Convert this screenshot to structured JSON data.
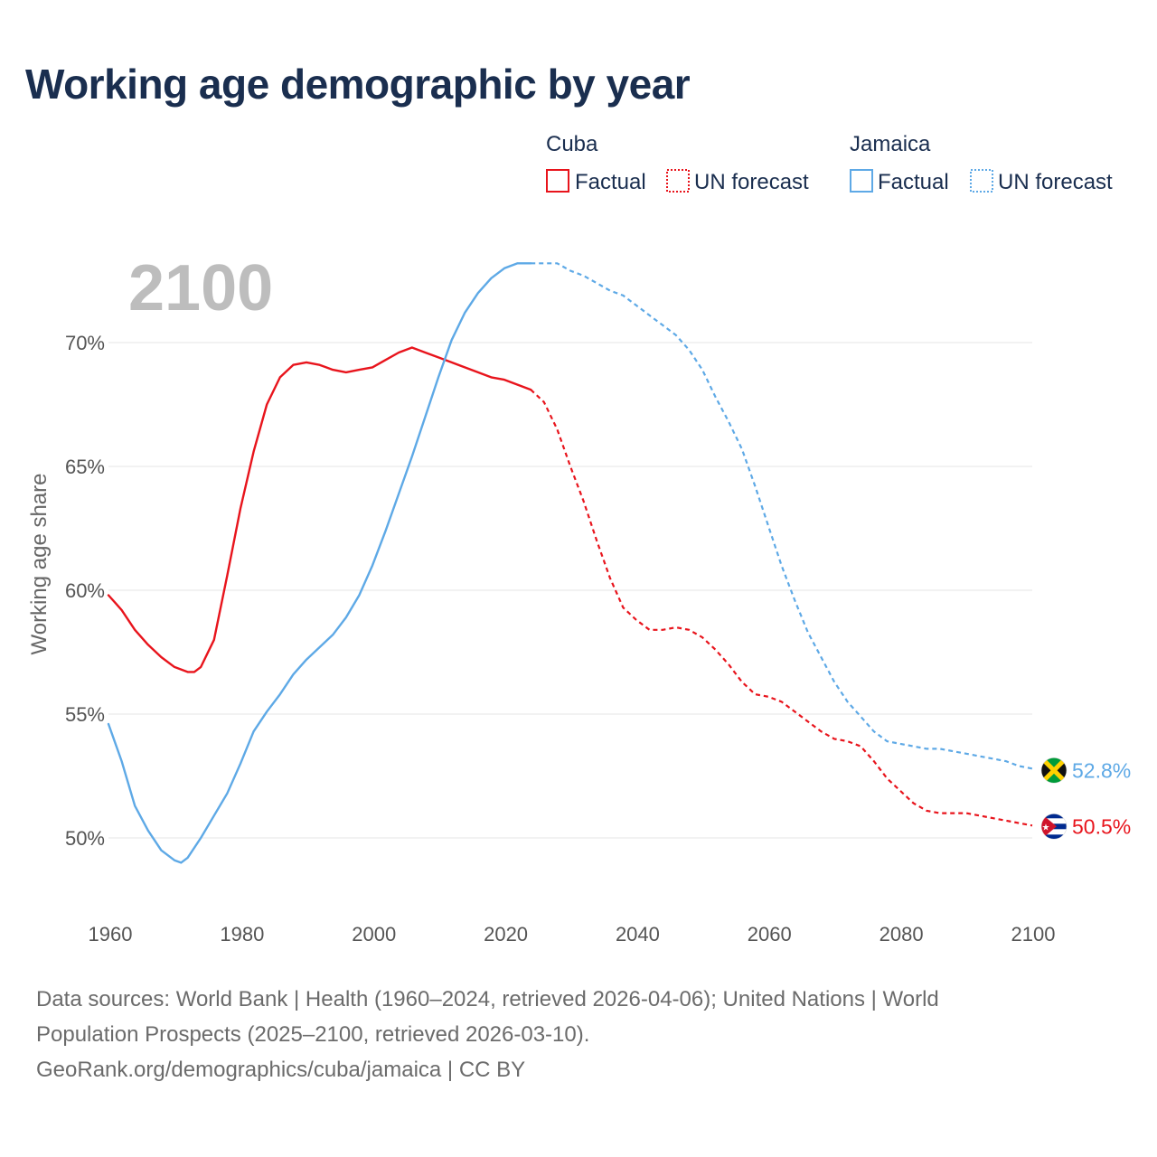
{
  "title": "Working age demographic by year",
  "year_display": "2100",
  "legend": {
    "groups": [
      {
        "name": "Cuba",
        "color": "#e8141c",
        "factual_label": "Factual",
        "forecast_label": "UN forecast"
      },
      {
        "name": "Jamaica",
        "color": "#5ea9e6",
        "factual_label": "Factual",
        "forecast_label": "UN forecast"
      }
    ]
  },
  "footer": {
    "line1": "Data sources: World Bank | Health (1960–2024, retrieved 2026-04-06); United Nations | World",
    "line2": "Population Prospects (2025–2100, retrieved 2026-03-10).",
    "line3": "GeoRank.org/demographics/cuba/jamaica | CC BY"
  },
  "icons": {
    "jamaica_flag": "jamaica-flag-icon",
    "cuba_flag": "cuba-flag-icon"
  },
  "chart_data": {
    "type": "line",
    "title": "Working age demographic by year",
    "xlabel": "",
    "ylabel": "Working age share",
    "xlim": [
      1960,
      2100
    ],
    "ylim": [
      47,
      74
    ],
    "x_ticks": [
      1960,
      1980,
      2000,
      2020,
      2040,
      2060,
      2080,
      2100
    ],
    "x_tick_labels": [
      "1960",
      "1980",
      "2000",
      "2020",
      "2040",
      "2060",
      "2080",
      "2100"
    ],
    "y_ticks": [
      50,
      55,
      60,
      65,
      70
    ],
    "y_tick_labels": [
      "50%",
      "55%",
      "60%",
      "65%",
      "70%"
    ],
    "grid": true,
    "legend_position": "top-right",
    "series": [
      {
        "name": "Cuba",
        "color": "#e8141c",
        "end_label": "50.5%",
        "factual": {
          "x": [
            1960,
            1962,
            1964,
            1966,
            1968,
            1970,
            1972,
            1973,
            1974,
            1976,
            1978,
            1980,
            1982,
            1984,
            1986,
            1988,
            1990,
            1992,
            1993,
            1994,
            1996,
            1998,
            2000,
            2002,
            2004,
            2006,
            2008,
            2010,
            2012,
            2014,
            2016,
            2018,
            2020,
            2022,
            2024
          ],
          "y": [
            59.8,
            59.2,
            58.4,
            57.8,
            57.3,
            56.9,
            56.7,
            56.7,
            56.9,
            58.0,
            60.6,
            63.3,
            65.6,
            67.5,
            68.6,
            69.1,
            69.2,
            69.1,
            69.0,
            68.9,
            68.8,
            68.9,
            69.0,
            69.3,
            69.6,
            69.8,
            69.6,
            69.4,
            69.2,
            69.0,
            68.8,
            68.6,
            68.5,
            68.3,
            68.1
          ]
        },
        "forecast": {
          "x": [
            2024,
            2026,
            2028,
            2030,
            2032,
            2034,
            2036,
            2038,
            2040,
            2042,
            2044,
            2046,
            2048,
            2050,
            2052,
            2054,
            2056,
            2058,
            2060,
            2062,
            2064,
            2066,
            2068,
            2070,
            2072,
            2074,
            2076,
            2078,
            2080,
            2082,
            2084,
            2086,
            2088,
            2090,
            2092,
            2094,
            2096,
            2098,
            2100
          ],
          "y": [
            68.1,
            67.6,
            66.5,
            65.0,
            63.6,
            62.0,
            60.5,
            59.3,
            58.8,
            58.4,
            58.4,
            58.5,
            58.4,
            58.1,
            57.6,
            57.0,
            56.3,
            55.8,
            55.7,
            55.5,
            55.1,
            54.7,
            54.3,
            54.0,
            53.9,
            53.7,
            53.1,
            52.4,
            51.9,
            51.4,
            51.1,
            51.0,
            51.0,
            51.0,
            50.9,
            50.8,
            50.7,
            50.6,
            50.5
          ]
        }
      },
      {
        "name": "Jamaica",
        "color": "#5ea9e6",
        "end_label": "52.8%",
        "factual": {
          "x": [
            1960,
            1962,
            1964,
            1966,
            1968,
            1970,
            1971,
            1972,
            1974,
            1976,
            1978,
            1980,
            1982,
            1984,
            1986,
            1988,
            1990,
            1992,
            1994,
            1996,
            1998,
            2000,
            2002,
            2004,
            2006,
            2008,
            2010,
            2012,
            2014,
            2016,
            2018,
            2020,
            2022,
            2024
          ],
          "y": [
            54.6,
            53.1,
            51.3,
            50.3,
            49.5,
            49.1,
            49.0,
            49.2,
            50.0,
            50.9,
            51.8,
            53.0,
            54.3,
            55.1,
            55.8,
            56.6,
            57.2,
            57.7,
            58.2,
            58.9,
            59.8,
            61.0,
            62.4,
            63.9,
            65.4,
            67.0,
            68.6,
            70.1,
            71.2,
            72.0,
            72.6,
            73.0,
            73.2,
            73.2
          ]
        },
        "forecast": {
          "x": [
            2024,
            2026,
            2028,
            2030,
            2032,
            2034,
            2036,
            2038,
            2040,
            2042,
            2044,
            2046,
            2048,
            2050,
            2052,
            2054,
            2056,
            2058,
            2060,
            2062,
            2064,
            2066,
            2068,
            2070,
            2072,
            2074,
            2076,
            2078,
            2080,
            2082,
            2084,
            2086,
            2088,
            2090,
            2092,
            2094,
            2096,
            2098,
            2100
          ],
          "y": [
            73.2,
            73.2,
            73.2,
            72.9,
            72.7,
            72.4,
            72.1,
            71.9,
            71.5,
            71.1,
            70.7,
            70.3,
            69.7,
            68.9,
            67.8,
            66.8,
            65.7,
            64.2,
            62.6,
            61.0,
            59.6,
            58.3,
            57.3,
            56.3,
            55.5,
            54.9,
            54.3,
            53.9,
            53.8,
            53.7,
            53.6,
            53.6,
            53.5,
            53.4,
            53.3,
            53.2,
            53.1,
            52.9,
            52.8
          ]
        }
      }
    ]
  }
}
